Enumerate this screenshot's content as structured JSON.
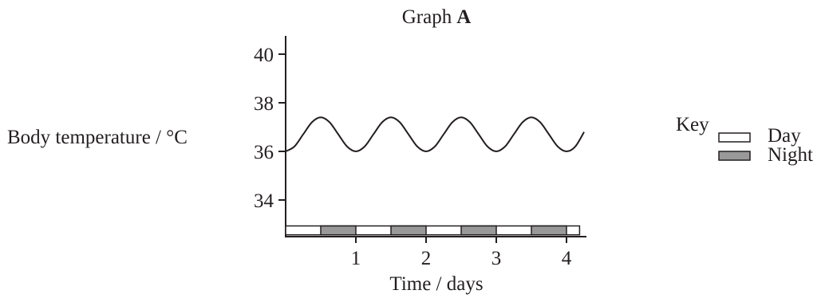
{
  "chart_data": {
    "type": "line",
    "title_prefix": "Graph",
    "title_letter": "A",
    "xlabel": "Time / days",
    "ylabel": "Body temperature / °C",
    "xlim": [
      0,
      4.3
    ],
    "ylim": [
      32.5,
      40.8
    ],
    "x_ticks": [
      1,
      2,
      3,
      4
    ],
    "y_ticks": [
      34,
      36,
      38,
      40
    ],
    "series": [
      {
        "x": [
          0,
          0.125,
          0.25,
          0.375,
          0.5,
          0.625,
          0.75,
          0.875,
          1.0,
          1.125,
          1.25,
          1.375,
          1.5,
          1.625,
          1.75,
          1.875,
          2.0,
          2.125,
          2.25,
          2.375,
          2.5,
          2.625,
          2.75,
          2.875,
          3.0,
          3.125,
          3.25,
          3.375,
          3.5,
          3.625,
          3.75,
          3.875,
          4.0,
          4.125,
          4.25
        ],
        "y": [
          36.0,
          36.2,
          36.7,
          37.2,
          37.4,
          37.2,
          36.7,
          36.2,
          36.0,
          36.2,
          36.7,
          37.2,
          37.4,
          37.2,
          36.7,
          36.2,
          36.0,
          36.2,
          36.7,
          37.2,
          37.4,
          37.2,
          36.7,
          36.2,
          36.0,
          36.2,
          36.7,
          37.2,
          37.4,
          37.2,
          36.7,
          36.2,
          36.0,
          36.2,
          36.8
        ]
      }
    ],
    "light_bar": {
      "y_range": [
        32.6,
        32.9
      ],
      "night_intervals": [
        [
          0.5,
          1.0
        ],
        [
          1.5,
          2.0
        ],
        [
          2.5,
          3.0
        ],
        [
          3.5,
          4.0
        ]
      ]
    },
    "legend": {
      "title": "Key",
      "position": "right",
      "items": [
        {
          "label": "Day",
          "color": "#ffffff"
        },
        {
          "label": "Night",
          "color": "#999999"
        }
      ]
    }
  },
  "colors": {
    "ink": "#231f20",
    "night": "#999999",
    "day": "#ffffff"
  }
}
